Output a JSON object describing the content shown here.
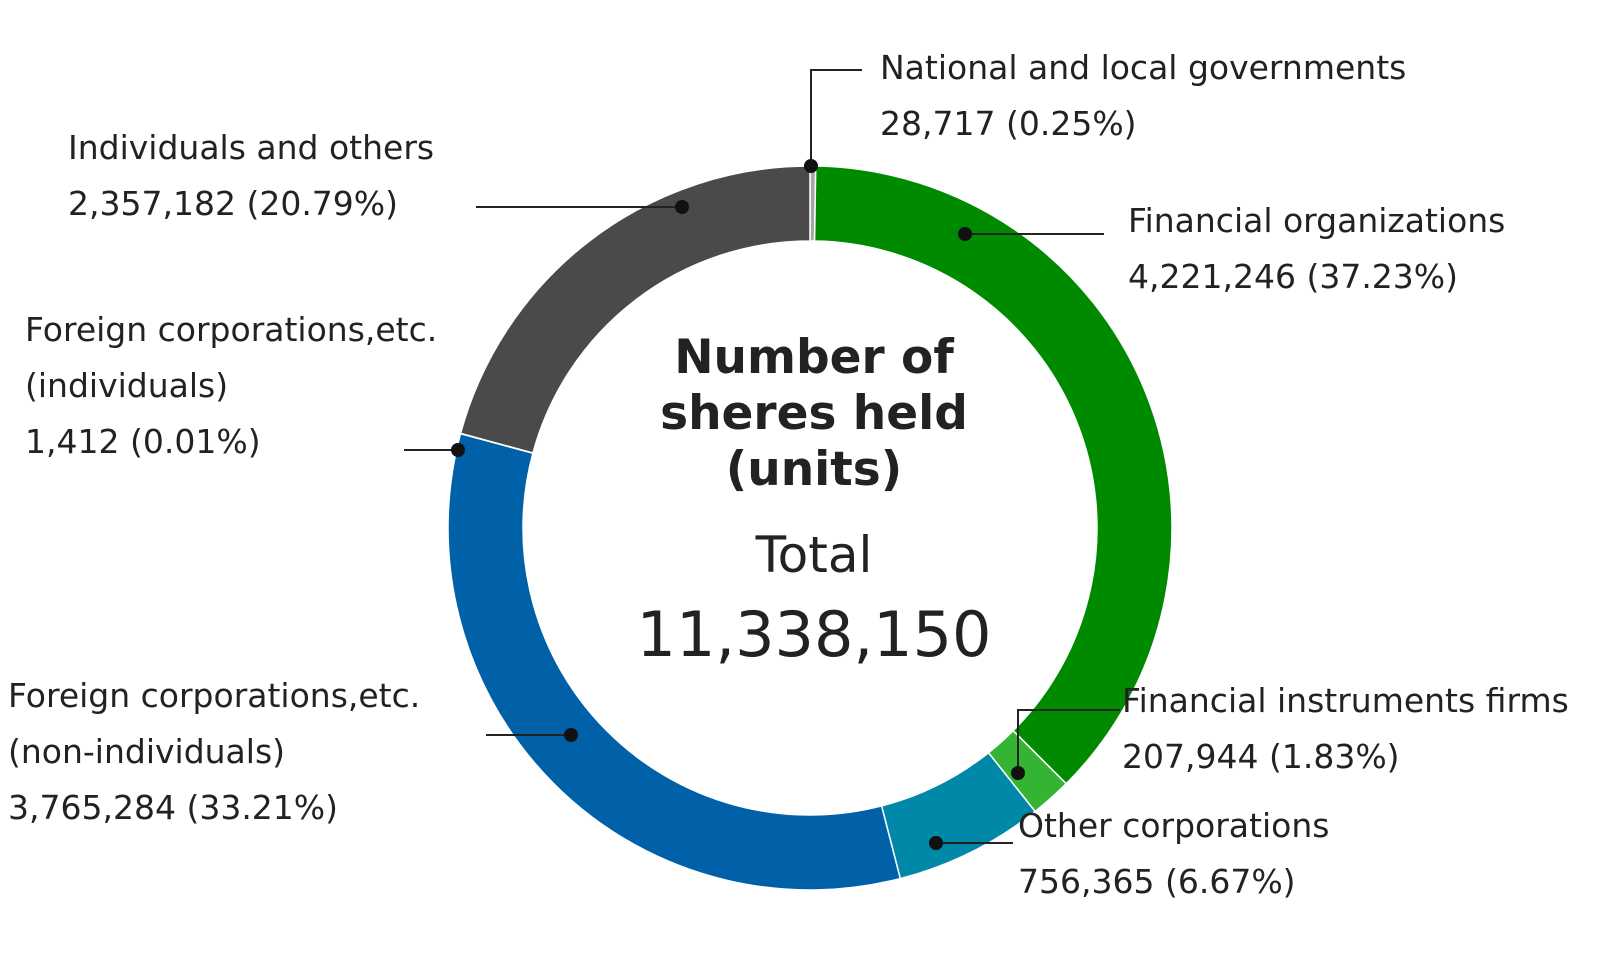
{
  "chart_data": {
    "type": "pie",
    "center": {
      "title_lines": [
        "Number of",
        "sheres held",
        "(units)"
      ],
      "total_label": "Total",
      "total_value": "11,338,150"
    },
    "total": 11338150,
    "slices": [
      {
        "name": "National and local governments",
        "value": 28717,
        "percent": 0.25,
        "value_text": "28,717",
        "percent_text": "(0.25%)",
        "color": "#a6a6a6"
      },
      {
        "name": "Financial organizations",
        "value": 4221246,
        "percent": 37.23,
        "value_text": "4,221,246",
        "percent_text": "(37.23%)",
        "color": "#008a00"
      },
      {
        "name": "Financial instruments firms",
        "value": 207944,
        "percent": 1.83,
        "value_text": "207,944",
        "percent_text": "(1.83%)",
        "color": "#33b533"
      },
      {
        "name": "Other corporations",
        "value": 756365,
        "percent": 6.67,
        "value_text": "756,365",
        "percent_text": "(6.67%)",
        "color": "#0088a8"
      },
      {
        "name": "Foreign corporations,etc. (non-individuals)",
        "name_lines": [
          "Foreign corporations,etc.",
          "(non-individuals)"
        ],
        "value": 3765284,
        "percent": 33.21,
        "value_text": "3,765,284",
        "percent_text": "(33.21%)",
        "color": "#0060a8"
      },
      {
        "name": "Foreign corporations,etc. (individuals)",
        "name_lines": [
          "Foreign corporations,etc.",
          "(individuals)"
        ],
        "value": 1412,
        "percent": 0.01,
        "value_text": "1,412",
        "percent_text": "(0.01%)",
        "color": "#6fa0d0"
      },
      {
        "name": "Individuals and others",
        "value": 2357182,
        "percent": 20.79,
        "value_text": "2,357,182",
        "percent_text": "(20.79%)",
        "color": "#4a4a4a"
      }
    ]
  }
}
